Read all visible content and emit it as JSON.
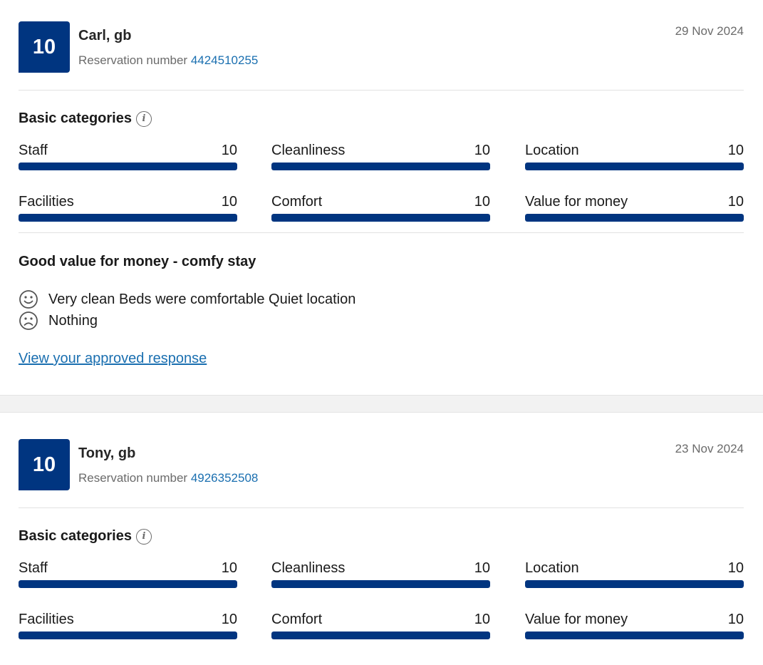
{
  "reviews": [
    {
      "score": "10",
      "guest": "Carl, gb",
      "reservation_label": "Reservation number",
      "reservation_number": "4424510255",
      "date": "29 Nov 2024",
      "categories_title": "Basic categories",
      "categories": [
        {
          "label": "Staff",
          "value": "10",
          "fill": 1.0
        },
        {
          "label": "Cleanliness",
          "value": "10",
          "fill": 1.0
        },
        {
          "label": "Location",
          "value": "10",
          "fill": 1.0
        },
        {
          "label": "Facilities",
          "value": "10",
          "fill": 1.0
        },
        {
          "label": "Comfort",
          "value": "10",
          "fill": 1.0
        },
        {
          "label": "Value for money",
          "value": "10",
          "fill": 1.0
        }
      ],
      "title": "Good value for money - comfy stay",
      "positive": "Very clean Beds were comfortable Quiet location",
      "negative": "Nothing",
      "response_link": "View your approved response"
    },
    {
      "score": "10",
      "guest": "Tony, gb",
      "reservation_label": "Reservation number",
      "reservation_number": "4926352508",
      "date": "23 Nov 2024",
      "categories_title": "Basic categories",
      "categories": [
        {
          "label": "Staff",
          "value": "10",
          "fill": 1.0
        },
        {
          "label": "Cleanliness",
          "value": "10",
          "fill": 1.0
        },
        {
          "label": "Location",
          "value": "10",
          "fill": 1.0
        },
        {
          "label": "Facilities",
          "value": "10",
          "fill": 1.0
        },
        {
          "label": "Comfort",
          "value": "10",
          "fill": 1.0
        },
        {
          "label": "Value for money",
          "value": "10",
          "fill": 1.0
        }
      ]
    }
  ],
  "colors": {
    "brand": "#003580",
    "link": "#1a6fb0",
    "muted": "#6b6b6b"
  },
  "icons": {
    "positive": "smiley-face-icon",
    "negative": "sad-face-icon",
    "info": "info-icon"
  }
}
